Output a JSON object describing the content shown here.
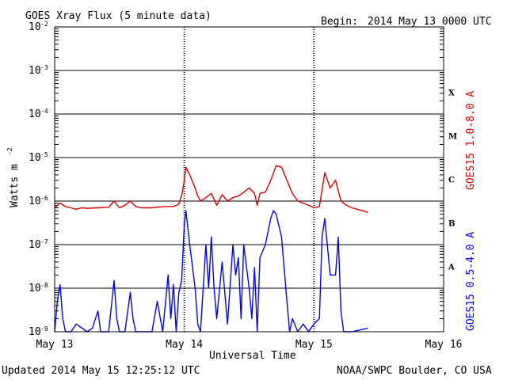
{
  "header": {
    "title": "GOES Xray Flux (5 minute data)",
    "begin_label": "Begin:",
    "begin_value": "2014 May 13 0000 UTC"
  },
  "footer": {
    "updated": "Updated 2014 May 15 12:25:12 UTC",
    "credit": "NOAA/SWPC Boulder, CO USA"
  },
  "chart_data": {
    "type": "line",
    "title": "GOES Xray Flux (5 minute data)",
    "xlabel": "Universal Time",
    "ylabel": "Watts m",
    "ylabel_superscript": "-2",
    "yscale": "log",
    "ylim": [
      1e-09,
      0.01
    ],
    "xlim": [
      0,
      72
    ],
    "x_units": "hours since 2014 May 13 0000 UTC",
    "x_ticks": [
      {
        "x": 0,
        "label": "May 13"
      },
      {
        "x": 24,
        "label": "May 14"
      },
      {
        "x": 48,
        "label": "May 15"
      },
      {
        "x": 72,
        "label": "May 16"
      }
    ],
    "y_ticks": [
      {
        "exp": -9,
        "base": "10",
        "sup": "-9"
      },
      {
        "exp": -8,
        "base": "10",
        "sup": "-8"
      },
      {
        "exp": -7,
        "base": "10",
        "sup": "-7"
      },
      {
        "exp": -6,
        "base": "10",
        "sup": "-6"
      },
      {
        "exp": -5,
        "base": "10",
        "sup": "-5"
      },
      {
        "exp": -4,
        "base": "10",
        "sup": "-4"
      },
      {
        "exp": -3,
        "base": "10",
        "sup": "-3"
      },
      {
        "exp": -2,
        "base": "10",
        "sup": "-2"
      }
    ],
    "flare_classes": [
      {
        "label": "A",
        "exp": -7.5
      },
      {
        "label": "B",
        "exp": -6.5
      },
      {
        "label": "C",
        "exp": -5.5
      },
      {
        "label": "M",
        "exp": -4.5
      },
      {
        "label": "X",
        "exp": -3.5
      }
    ],
    "grid": true,
    "colors": {
      "long": "#dd0000",
      "short": "#0000ff"
    },
    "series": [
      {
        "name": "GOES15 1.0-8.0 A",
        "color": "#dd0000",
        "points": [
          [
            0,
            7e-07
          ],
          [
            1,
            9e-07
          ],
          [
            2,
            7.5e-07
          ],
          [
            3,
            7e-07
          ],
          [
            4,
            6.5e-07
          ],
          [
            5,
            7e-07
          ],
          [
            6,
            6.8e-07
          ],
          [
            8,
            7e-07
          ],
          [
            10,
            7.2e-07
          ],
          [
            11,
            1e-06
          ],
          [
            12,
            7e-07
          ],
          [
            13,
            8e-07
          ],
          [
            14,
            1e-06
          ],
          [
            15,
            7.5e-07
          ],
          [
            16,
            7e-07
          ],
          [
            18,
            7e-07
          ],
          [
            20,
            7.5e-07
          ],
          [
            22,
            7.5e-07
          ],
          [
            23,
            8.5e-07
          ],
          [
            23.6,
            1.5e-06
          ],
          [
            24,
            3e-06
          ],
          [
            24.3,
            6e-06
          ],
          [
            25,
            4e-06
          ],
          [
            26,
            2e-06
          ],
          [
            26.5,
            1.3e-06
          ],
          [
            27,
            1e-06
          ],
          [
            28,
            1.2e-06
          ],
          [
            29,
            1.5e-06
          ],
          [
            30,
            8e-07
          ],
          [
            31,
            1.4e-06
          ],
          [
            32,
            1e-06
          ],
          [
            33,
            1.2e-06
          ],
          [
            34,
            1.3e-06
          ],
          [
            35,
            1.6e-06
          ],
          [
            36,
            2e-06
          ],
          [
            37,
            1.5e-06
          ],
          [
            37.5,
            8e-07
          ],
          [
            38,
            1.5e-06
          ],
          [
            39,
            1.6e-06
          ],
          [
            40,
            3e-06
          ],
          [
            41,
            6.5e-06
          ],
          [
            42,
            6e-06
          ],
          [
            43,
            3e-06
          ],
          [
            44,
            1.5e-06
          ],
          [
            45,
            1e-06
          ],
          [
            46,
            9e-07
          ],
          [
            47,
            8e-07
          ],
          [
            48,
            7e-07
          ],
          [
            49,
            7.5e-07
          ],
          [
            50,
            4.5e-06
          ],
          [
            51,
            2e-06
          ],
          [
            52,
            3e-06
          ],
          [
            53,
            1e-06
          ],
          [
            54,
            8e-07
          ],
          [
            55,
            7e-07
          ],
          [
            56,
            6.5e-07
          ],
          [
            57,
            6e-07
          ],
          [
            58,
            5.5e-07
          ]
        ]
      },
      {
        "name": "GOES15 0.5-4.0 A",
        "color": "#0000ff",
        "points": [
          [
            0,
            1e-09
          ],
          [
            0.5,
            5e-09
          ],
          [
            1,
            1.2e-08
          ],
          [
            1.5,
            2e-09
          ],
          [
            2,
            1e-09
          ],
          [
            3,
            1e-09
          ],
          [
            4,
            1.5e-09
          ],
          [
            6,
            1e-09
          ],
          [
            7,
            1.2e-09
          ],
          [
            8,
            3e-09
          ],
          [
            8.5,
            1e-09
          ],
          [
            10,
            1e-09
          ],
          [
            11,
            1.5e-08
          ],
          [
            11.5,
            2e-09
          ],
          [
            12,
            1e-09
          ],
          [
            13,
            1e-09
          ],
          [
            14,
            8e-09
          ],
          [
            14.5,
            2e-09
          ],
          [
            15,
            1e-09
          ],
          [
            18,
            1e-09
          ],
          [
            19,
            5e-09
          ],
          [
            20,
            1e-09
          ],
          [
            21,
            2e-08
          ],
          [
            21.5,
            2e-09
          ],
          [
            22,
            1.2e-08
          ],
          [
            22.5,
            1e-09
          ],
          [
            23,
            8e-09
          ],
          [
            23.5,
            1.5e-08
          ],
          [
            24,
            3e-07
          ],
          [
            24.3,
            6e-07
          ],
          [
            25,
            1e-07
          ],
          [
            26,
            1e-08
          ],
          [
            26.5,
            1.5e-09
          ],
          [
            27,
            1e-09
          ],
          [
            28,
            1e-07
          ],
          [
            28.5,
            1e-08
          ],
          [
            29,
            1.5e-07
          ],
          [
            29.5,
            1e-08
          ],
          [
            30,
            2e-09
          ],
          [
            31,
            4e-08
          ],
          [
            32,
            1.5e-09
          ],
          [
            33,
            1e-07
          ],
          [
            33.5,
            2e-08
          ],
          [
            34,
            5e-08
          ],
          [
            34.5,
            2e-09
          ],
          [
            35,
            1e-07
          ],
          [
            36,
            1e-08
          ],
          [
            36.5,
            2e-09
          ],
          [
            37,
            3e-08
          ],
          [
            37.5,
            1e-09
          ],
          [
            38,
            5e-08
          ],
          [
            39,
            1e-07
          ],
          [
            40,
            4e-07
          ],
          [
            40.5,
            6e-07
          ],
          [
            41,
            5e-07
          ],
          [
            42,
            1.5e-07
          ],
          [
            43,
            5e-09
          ],
          [
            43.5,
            1e-09
          ],
          [
            44,
            2e-09
          ],
          [
            45,
            1e-09
          ],
          [
            46,
            1.5e-09
          ],
          [
            47,
            1e-09
          ],
          [
            48,
            1.5e-09
          ],
          [
            49,
            2e-09
          ],
          [
            49.5,
            1.5e-07
          ],
          [
            50,
            4e-07
          ],
          [
            51,
            2e-08
          ],
          [
            52,
            2e-08
          ],
          [
            52.5,
            1.5e-07
          ],
          [
            53,
            3e-09
          ],
          [
            53.5,
            1e-09
          ],
          [
            55,
            1e-09
          ],
          [
            58,
            1.2e-09
          ]
        ]
      }
    ]
  }
}
